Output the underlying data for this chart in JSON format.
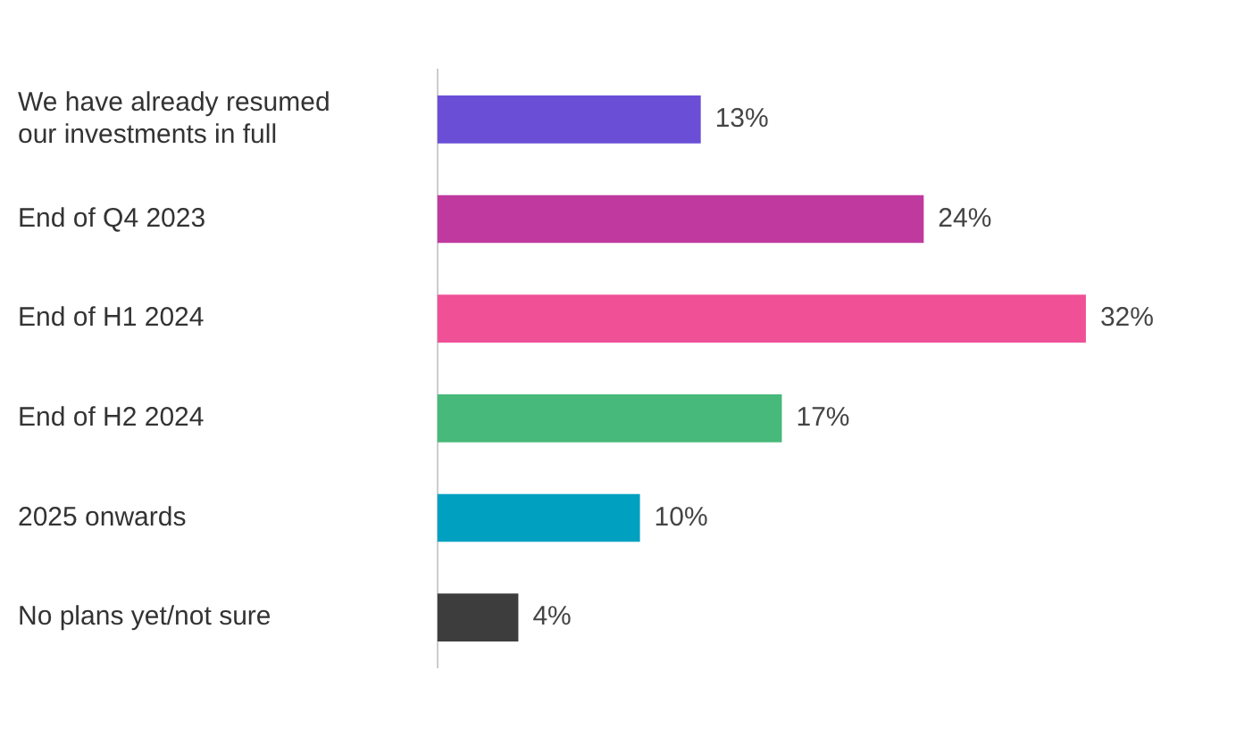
{
  "chart_data": {
    "type": "bar",
    "orientation": "horizontal",
    "categories": [
      "We have already resumed our investments in full",
      "End of Q4 2023",
      "End of H1 2024",
      "End of H2 2024",
      "2025 onwards",
      "No plans yet/not sure"
    ],
    "values": [
      13,
      24,
      32,
      17,
      10,
      4
    ],
    "colors": [
      "#6a4fd6",
      "#c0399f",
      "#ef5096",
      "#47b97a",
      "#00a0c0",
      "#3d3d3d"
    ],
    "value_labels": [
      "13%",
      "24%",
      "32%",
      "17%",
      "10%",
      "4%"
    ],
    "legend": false
  }
}
